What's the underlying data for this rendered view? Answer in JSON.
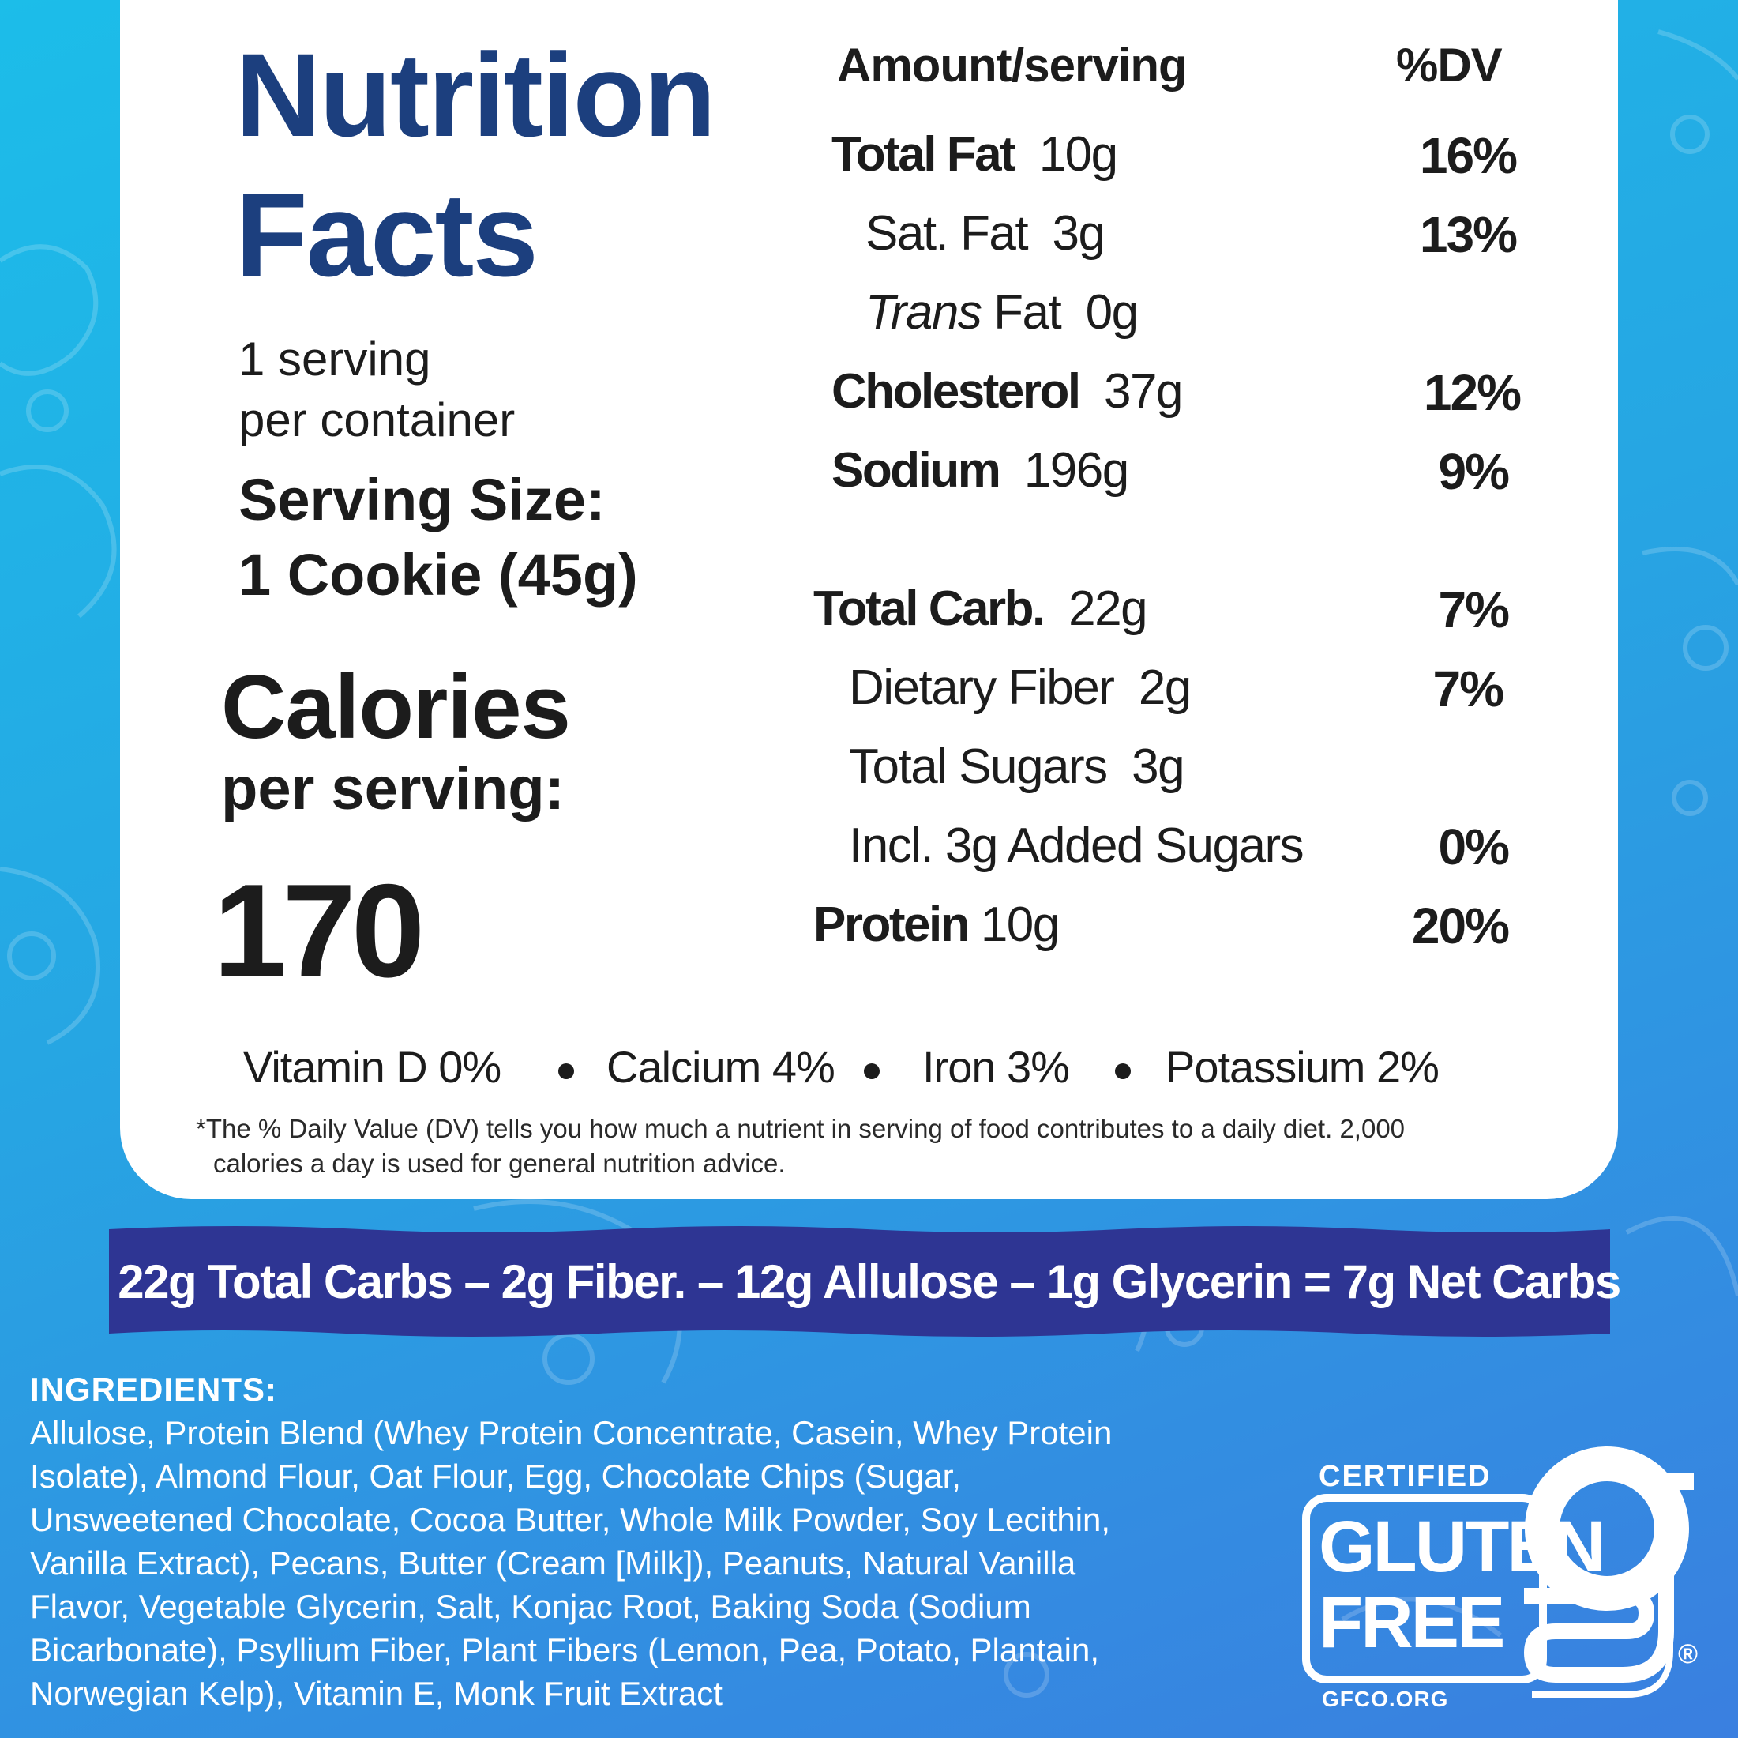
{
  "title": {
    "line1": "Nutrition",
    "line2": "Facts"
  },
  "servings": {
    "line1": "1 serving",
    "line2": "per container"
  },
  "serving_size": {
    "line1": "Serving Size:",
    "line2": "1 Cookie (45g)"
  },
  "calories": {
    "line1": "Calories",
    "line2": "per serving:",
    "value": "170"
  },
  "header": {
    "amount": "Amount/serving",
    "dv": "%DV"
  },
  "nutrients": [
    {
      "label": "Total Fat",
      "amount": "10g",
      "dv": "16%"
    },
    {
      "label": "Sat. Fat",
      "amount": "3g",
      "dv": "13%"
    },
    {
      "label": "Trans",
      "label_rest": "Fat",
      "amount": "0g",
      "dv": ""
    },
    {
      "label": "Cholesterol",
      "amount": "37g",
      "dv": "12%"
    },
    {
      "label": "Sodium",
      "amount": "196g",
      "dv": "9%"
    },
    {
      "label": "Total Carb.",
      "amount": "22g",
      "dv": "7%"
    },
    {
      "label": "Dietary Fiber",
      "amount": "2g",
      "dv": "7%"
    },
    {
      "label": "Total Sugars",
      "amount": "3g",
      "dv": ""
    },
    {
      "label": "Incl. 3g Added Sugars",
      "amount": "",
      "dv": "0%"
    },
    {
      "label": "Protein",
      "amount": "10g",
      "dv": "20%"
    }
  ],
  "vitamins": [
    "Vitamin D 0%",
    "Calcium 4%",
    "Iron 3%",
    "Potassium 2%"
  ],
  "footnote": {
    "line1": "*The % Daily Value (DV) tells you how much a nutrient in serving of food contributes to a daily diet. 2,000",
    "line2": "calories a day is used for general nutrition advice."
  },
  "banner": "22g  Total Carbs  –  2g Fiber. –  12g Allulose –  1g Glycerin = 7g Net Carbs",
  "ingredients": {
    "heading": "INGREDIENTS:",
    "lines": [
      "Allulose, Protein Blend (Whey Protein Concentrate, Casein, Whey Protein",
      "Isolate), Almond Flour, Oat Flour, Egg, Chocolate Chips (Sugar,",
      "Unsweetened Chocolate, Cocoa Butter, Whole Milk Powder, Soy Lecithin,",
      "Vanilla Extract), Pecans, Butter (Cream [Milk]), Peanuts, Natural Vanilla",
      "Flavor, Vegetable Glycerin, Salt, Konjac Root, Baking Soda (Sodium",
      "Bicarbonate), Psyllium Fiber, Plant Fibers (Lemon, Pea, Potato, Plantain,",
      "Norwegian Kelp), Vitamin E, Monk Fruit Extract"
    ]
  },
  "certification": {
    "certified": "CERTIFIED",
    "gluten": "GLUTEN",
    "free": "FREE",
    "registered": "®",
    "url": "GFCO.ORG"
  },
  "colors": {
    "title": "#1c3f7e",
    "banner": "#2e3593",
    "background_top": "#1cbde9",
    "background_bottom": "#3a7fe0"
  }
}
